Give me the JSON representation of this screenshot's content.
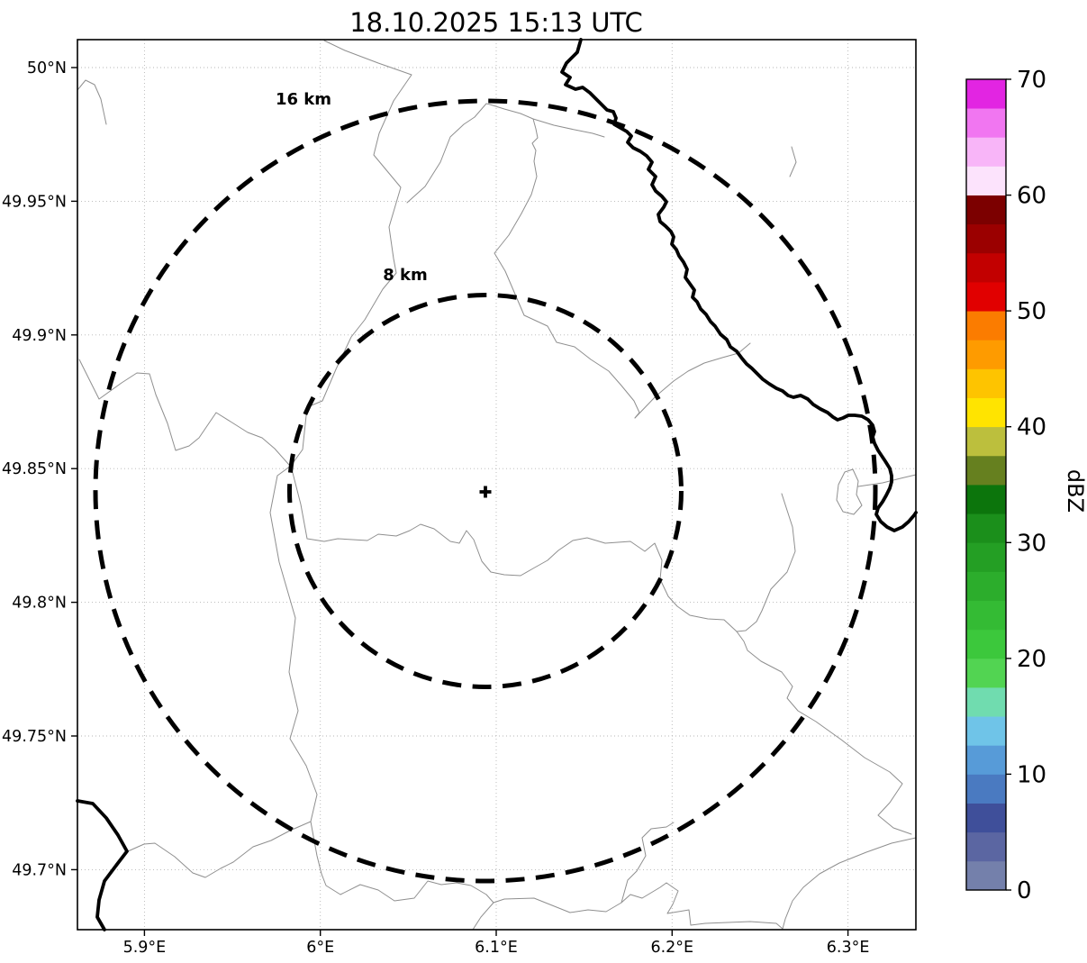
{
  "title": "18.10.2025 15:13 UTC",
  "map": {
    "range_ring_labels": {
      "outer": "16 km",
      "inner": "8 km"
    },
    "center_marker_symbol": "+",
    "x_axis_ticks": [
      "5.9°E",
      "6°E",
      "6.1°E",
      "6.2°E",
      "6.3°E"
    ],
    "y_axis_ticks": [
      "50°N",
      "49.95°N",
      "49.9°N",
      "49.85°N",
      "49.8°N",
      "49.75°N",
      "49.7°N"
    ]
  },
  "colorbar": {
    "label": "dBZ",
    "value_min": 0,
    "value_max": 70,
    "segment_step_dbz": 2.5,
    "tick_labels_top_to_bottom": [
      "70",
      "60",
      "50",
      "40",
      "30",
      "20",
      "10",
      "0"
    ],
    "segment_colors_low_to_high": [
      "#7480ab",
      "#5b66a2",
      "#3f4f9a",
      "#4a7ac1",
      "#579bd8",
      "#6fc4e8",
      "#70dcaf",
      "#52d452",
      "#3cc83c",
      "#34bb34",
      "#2cad2c",
      "#249f24",
      "#1b8f1b",
      "#0c750c",
      "#66801f",
      "#bcbf3d",
      "#ffe400",
      "#fec400",
      "#fe9b00",
      "#fb7c00",
      "#e10000",
      "#c20000",
      "#9b0000",
      "#7c0000",
      "#fce3fc",
      "#f8b5f8",
      "#f176f1",
      "#e225e2"
    ]
  }
}
